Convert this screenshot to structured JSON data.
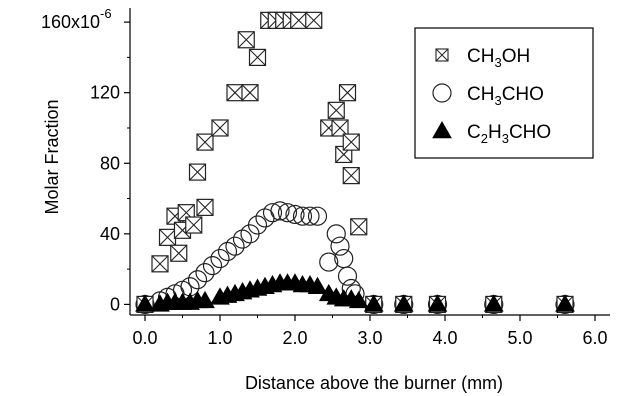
{
  "chart_data": {
    "type": "scatter",
    "xlabel": "Distance above the burner (mm)",
    "ylabel": "Molar Fraction",
    "xlim": [
      -0.2,
      6.2
    ],
    "ylim": [
      -6,
      168
    ],
    "x_ticks": [
      "0.0",
      "1.0",
      "2.0",
      "3.0",
      "4.0",
      "5.0",
      "6.0"
    ],
    "y_ticks": [
      "0",
      "40",
      "80",
      "120",
      "160x10"
    ],
    "y_tick_values": [
      0,
      40,
      80,
      120,
      160
    ],
    "y_top_exponent": "-6",
    "grid": false,
    "legend_position": "top-right",
    "series": [
      {
        "name": "CH3OH",
        "legend": {
          "pre": "CH",
          "sub": "3",
          "post": "OH"
        },
        "marker": "boxed-x",
        "points": [
          [
            0.0,
            0
          ],
          [
            0.2,
            23
          ],
          [
            0.3,
            38
          ],
          [
            0.4,
            50
          ],
          [
            0.45,
            29
          ],
          [
            0.5,
            42
          ],
          [
            0.55,
            52
          ],
          [
            0.65,
            45
          ],
          [
            0.7,
            75
          ],
          [
            0.8,
            55
          ],
          [
            0.8,
            92
          ],
          [
            1.0,
            100
          ],
          [
            1.2,
            120
          ],
          [
            1.35,
            150
          ],
          [
            1.4,
            120
          ],
          [
            1.5,
            140
          ],
          [
            1.65,
            161
          ],
          [
            1.75,
            161
          ],
          [
            1.85,
            161
          ],
          [
            1.95,
            161
          ],
          [
            2.05,
            161
          ],
          [
            2.25,
            161
          ],
          [
            2.45,
            100
          ],
          [
            2.55,
            110
          ],
          [
            2.6,
            100
          ],
          [
            2.65,
            85
          ],
          [
            2.7,
            120
          ],
          [
            2.75,
            92
          ],
          [
            2.75,
            73
          ],
          [
            2.85,
            44
          ],
          [
            3.05,
            0
          ],
          [
            3.45,
            0
          ],
          [
            3.9,
            0
          ],
          [
            4.65,
            0
          ],
          [
            5.6,
            0
          ]
        ]
      },
      {
        "name": "CH3CHO",
        "legend": {
          "pre": "CH",
          "sub": "3",
          "post": "CHO"
        },
        "marker": "open-circle",
        "points": [
          [
            0.0,
            0
          ],
          [
            0.2,
            2
          ],
          [
            0.3,
            4
          ],
          [
            0.4,
            6
          ],
          [
            0.5,
            8
          ],
          [
            0.6,
            10
          ],
          [
            0.7,
            14
          ],
          [
            0.8,
            18
          ],
          [
            0.9,
            22
          ],
          [
            1.0,
            26
          ],
          [
            1.1,
            30
          ],
          [
            1.2,
            33
          ],
          [
            1.3,
            37
          ],
          [
            1.4,
            40
          ],
          [
            1.5,
            45
          ],
          [
            1.6,
            49
          ],
          [
            1.7,
            52
          ],
          [
            1.8,
            53
          ],
          [
            1.9,
            52
          ],
          [
            2.0,
            51
          ],
          [
            2.1,
            50
          ],
          [
            2.2,
            50
          ],
          [
            2.3,
            50
          ],
          [
            2.45,
            24
          ],
          [
            2.55,
            40
          ],
          [
            2.6,
            33
          ],
          [
            2.65,
            26
          ],
          [
            2.7,
            16
          ],
          [
            2.75,
            9
          ],
          [
            2.8,
            6
          ],
          [
            3.05,
            0
          ],
          [
            3.45,
            0
          ],
          [
            3.9,
            0
          ],
          [
            4.65,
            0
          ],
          [
            5.6,
            0
          ]
        ]
      },
      {
        "name": "C2H3CHO",
        "legend": {
          "pre": "C",
          "sub": "2",
          "post": "H",
          "sub2": "3",
          "post2": "CHO"
        },
        "marker": "filled-triangle",
        "points": [
          [
            0.0,
            0
          ],
          [
            0.2,
            0
          ],
          [
            0.3,
            1
          ],
          [
            0.4,
            1
          ],
          [
            0.5,
            1
          ],
          [
            0.6,
            1
          ],
          [
            0.7,
            2
          ],
          [
            0.8,
            2
          ],
          [
            1.0,
            4
          ],
          [
            1.1,
            5
          ],
          [
            1.2,
            6
          ],
          [
            1.3,
            7
          ],
          [
            1.4,
            8
          ],
          [
            1.5,
            9
          ],
          [
            1.6,
            10
          ],
          [
            1.7,
            11
          ],
          [
            1.8,
            12
          ],
          [
            1.9,
            12
          ],
          [
            2.0,
            12
          ],
          [
            2.1,
            11
          ],
          [
            2.2,
            11
          ],
          [
            2.3,
            10
          ],
          [
            2.45,
            6
          ],
          [
            2.55,
            4
          ],
          [
            2.65,
            3
          ],
          [
            2.75,
            3
          ],
          [
            2.85,
            2
          ],
          [
            3.05,
            0
          ],
          [
            3.45,
            0
          ],
          [
            3.9,
            0
          ],
          [
            4.65,
            0
          ],
          [
            5.6,
            0
          ]
        ]
      }
    ]
  }
}
